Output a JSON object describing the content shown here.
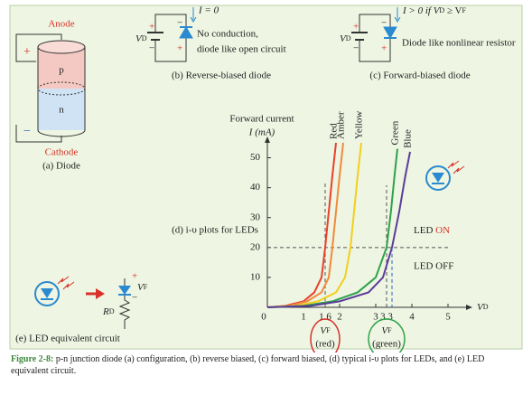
{
  "panels": {
    "a": {
      "anode": "Anode",
      "plus": "+",
      "p": "p",
      "n": "n",
      "minus": "−",
      "cathode": "Cathode",
      "caption": "(a) Diode"
    },
    "b": {
      "vd": [
        "V",
        "D"
      ],
      "signs": [
        "+",
        "−",
        "−",
        "+"
      ],
      "current": "I = 0",
      "note1": "No conduction,",
      "note2": "diode like open circuit",
      "caption": "(b) Reverse-biased diode"
    },
    "c": {
      "vd": [
        "V",
        "D"
      ],
      "signs": [
        "+",
        "−",
        "−",
        "+"
      ],
      "current": [
        "I > 0 if V",
        "D",
        " ≥ V",
        "F"
      ],
      "note": "Diode like nonlinear resistor",
      "caption": "(c) Forward-biased diode"
    },
    "e": {
      "vf": [
        "V",
        "F"
      ],
      "rd": [
        "R",
        "D"
      ],
      "signs": [
        "+",
        "−"
      ],
      "caption": "(e) LED equivalent circuit"
    }
  },
  "chart_data": {
    "type": "line",
    "title": "(d) i-υ plots for LEDs",
    "ylabel": "Forward current",
    "yunit": "I (mA)",
    "xlabel": [
      "V",
      "D"
    ],
    "xlim": [
      0,
      5.5
    ],
    "ylim": [
      0,
      55
    ],
    "xticks": [
      0,
      1,
      1.6,
      2,
      3,
      3.3,
      4,
      5
    ],
    "yticks": [
      10,
      20,
      30,
      40,
      50
    ],
    "series": [
      {
        "name": "Red",
        "color": "#e8412c",
        "x": [
          0,
          0.5,
          1.0,
          1.3,
          1.5,
          1.6,
          1.7,
          1.8,
          1.9
        ],
        "values": [
          0,
          0.5,
          2,
          5,
          10,
          20,
          32,
          44,
          55
        ]
      },
      {
        "name": "Amber",
        "color": "#f08a3c",
        "x": [
          0,
          0.6,
          1.1,
          1.5,
          1.7,
          1.8,
          1.9,
          2.0,
          2.1
        ],
        "values": [
          0,
          0.5,
          2,
          5,
          10,
          20,
          32,
          44,
          55
        ]
      },
      {
        "name": "Yellow",
        "color": "#f2cf1e",
        "x": [
          0,
          0.8,
          1.4,
          1.9,
          2.15,
          2.3,
          2.4,
          2.5,
          2.6
        ],
        "values": [
          0,
          0.5,
          2,
          5,
          10,
          20,
          32,
          44,
          55
        ]
      },
      {
        "name": "Green",
        "color": "#2ea24a",
        "x": [
          0,
          1,
          1.8,
          2.5,
          3.0,
          3.3,
          3.42,
          3.52,
          3.6
        ],
        "values": [
          0,
          0.5,
          2,
          5,
          10,
          20,
          32,
          44,
          53
        ]
      },
      {
        "name": "Blue",
        "color": "#5a3d99",
        "x": [
          0,
          1.2,
          2.0,
          2.8,
          3.2,
          3.45,
          3.65,
          3.82,
          3.95
        ],
        "values": [
          0,
          0.5,
          2,
          5,
          10,
          20,
          32,
          44,
          52
        ]
      }
    ],
    "led_on": [
      "LED ",
      "ON"
    ],
    "led_off": "LED OFF",
    "vf_markers": [
      {
        "v": [
          "V",
          "F"
        ],
        "label": "(red)"
      },
      {
        "v": [
          "V",
          "F"
        ],
        "label": "(green)"
      }
    ]
  },
  "caption": {
    "label": "Figure 2-8:",
    "text": "p-n junction diode (a) configuration, (b) reverse biased, (c) forward biased, (d) typical i-υ plots for LEDs, and (e) LED equivalent circuit."
  }
}
